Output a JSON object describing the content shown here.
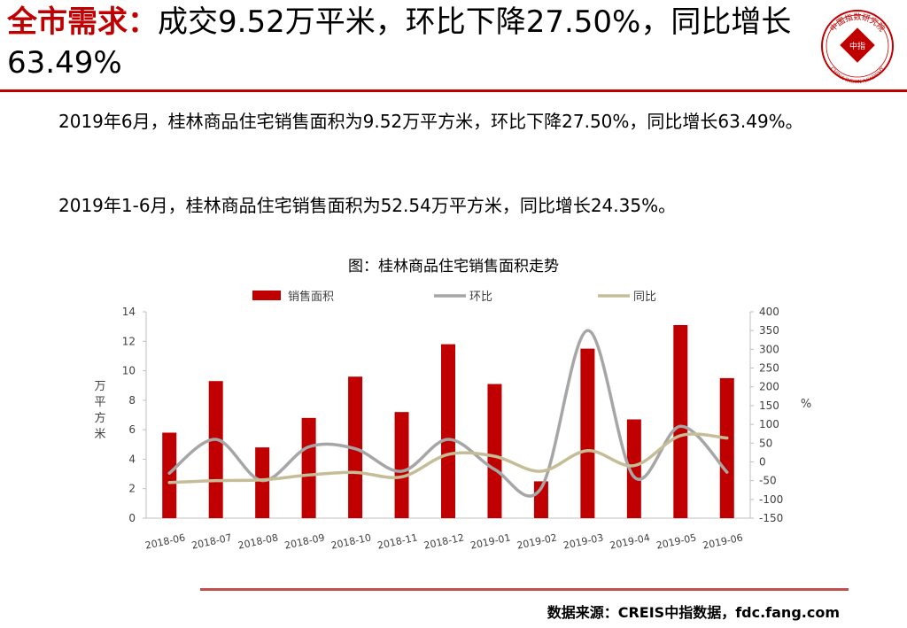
{
  "header": {
    "title_highlight": "全市需求：",
    "title_rest": "成交9.52万平米，环比下降27.50%，同比增长63.49%"
  },
  "logo": {
    "text_top": "中国指数研究院",
    "text_bottom": "CHINA INDEX ACADEMY",
    "center": "中指",
    "color": "#c00000"
  },
  "paragraphs": [
    "2019年6月，桂林商品住宅销售面积为9.52万平方米，环比下降27.50%，同比增长63.49%。",
    "2019年1-6月，桂林商品住宅销售面积为52.54万平方米，同比增长24.35%。"
  ],
  "chart_caption": "图：桂林商品住宅销售面积走势",
  "source": "数据来源：CREIS中指数据，fdc.fang.com",
  "chart_data": {
    "type": "bar",
    "categories": [
      "2018-06",
      "2018-07",
      "2018-08",
      "2018-09",
      "2018-10",
      "2018-11",
      "2018-12",
      "2019-01",
      "2019-02",
      "2019-03",
      "2019-04",
      "2019-05",
      "2019-06"
    ],
    "series": [
      {
        "name": "销售面积",
        "type": "bar",
        "axis": "left",
        "color": "#c00000",
        "values": [
          5.8,
          9.3,
          4.8,
          6.8,
          9.6,
          7.2,
          11.8,
          9.1,
          2.5,
          11.5,
          6.7,
          13.1,
          9.5
        ]
      },
      {
        "name": "环比",
        "type": "line",
        "axis": "right",
        "color": "#a6a6a6",
        "values": [
          -30,
          60,
          -50,
          40,
          35,
          -25,
          60,
          -20,
          -70,
          350,
          -40,
          95,
          -27.5
        ]
      },
      {
        "name": "同比",
        "type": "line",
        "axis": "right",
        "color": "#c4bd97",
        "values": [
          -55,
          -50,
          -48,
          -35,
          -28,
          -40,
          20,
          15,
          -25,
          30,
          -10,
          70,
          63.49
        ]
      }
    ],
    "ylabel": "万平方米",
    "ylabel_right": "%",
    "ylim": [
      0,
      14
    ],
    "ylim_right": [
      -150,
      400
    ],
    "yticks": [
      0,
      2,
      4,
      6,
      8,
      10,
      12,
      14
    ],
    "yticks_right": [
      -150,
      -100,
      -50,
      0,
      50,
      100,
      150,
      200,
      250,
      300,
      350,
      400
    ],
    "legend_position": "top",
    "grid": false
  }
}
